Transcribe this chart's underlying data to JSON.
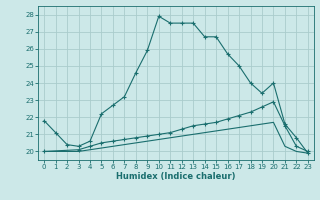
{
  "xlabel": "Humidex (Indice chaleur)",
  "bg_color": "#cce8e8",
  "grid_color": "#aacccc",
  "line_color": "#1a6e6e",
  "xlim": [
    -0.5,
    23.5
  ],
  "ylim": [
    19.5,
    28.5
  ],
  "xticks": [
    0,
    1,
    2,
    3,
    4,
    5,
    6,
    7,
    8,
    9,
    10,
    11,
    12,
    13,
    14,
    15,
    16,
    17,
    18,
    19,
    20,
    21,
    22,
    23
  ],
  "yticks": [
    20,
    21,
    22,
    23,
    24,
    25,
    26,
    27,
    28
  ],
  "line1_x": [
    0,
    1,
    2,
    3,
    4,
    5,
    6,
    7,
    8,
    9,
    10,
    11,
    12,
    13,
    14,
    15,
    16,
    17,
    18,
    19,
    20,
    21,
    22,
    23
  ],
  "line1_y": [
    21.8,
    21.1,
    20.4,
    20.3,
    20.6,
    22.2,
    22.7,
    23.2,
    24.6,
    25.9,
    27.9,
    27.5,
    27.5,
    27.5,
    26.7,
    26.7,
    25.7,
    25.0,
    24.0,
    23.4,
    24.0,
    21.6,
    20.8,
    19.9
  ],
  "line2_x": [
    0,
    3,
    4,
    5,
    6,
    7,
    8,
    9,
    10,
    11,
    12,
    13,
    14,
    15,
    16,
    17,
    18,
    19,
    20,
    21,
    22,
    23
  ],
  "line2_y": [
    20.0,
    20.1,
    20.3,
    20.5,
    20.6,
    20.7,
    20.8,
    20.9,
    21.0,
    21.1,
    21.3,
    21.5,
    21.6,
    21.7,
    21.9,
    22.1,
    22.3,
    22.6,
    22.9,
    21.5,
    20.3,
    20.0
  ],
  "line3_x": [
    0,
    3,
    4,
    5,
    6,
    7,
    8,
    9,
    10,
    11,
    12,
    13,
    14,
    15,
    16,
    17,
    18,
    19,
    20,
    21,
    22,
    23
  ],
  "line3_y": [
    20.0,
    20.0,
    20.1,
    20.2,
    20.3,
    20.4,
    20.5,
    20.6,
    20.7,
    20.8,
    20.9,
    21.0,
    21.1,
    21.2,
    21.3,
    21.4,
    21.5,
    21.6,
    21.7,
    20.3,
    20.0,
    19.9
  ]
}
